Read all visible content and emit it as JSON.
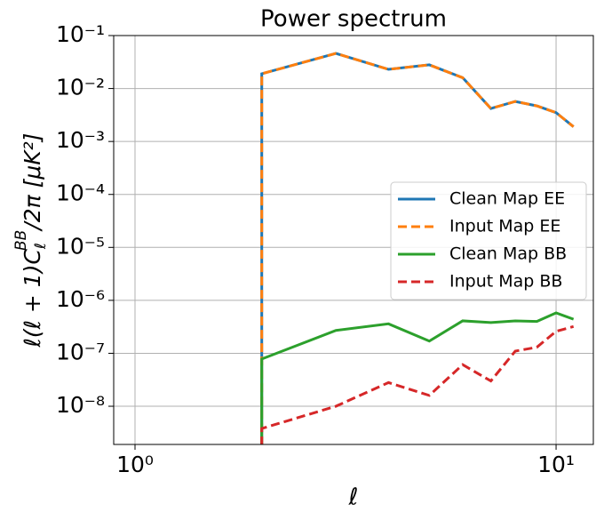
{
  "chart_data": {
    "type": "line",
    "title": "Power spectrum",
    "xlabel": "ℓ",
    "ylabel": [
      "ℓ(ℓ + 1)C",
      "ℓ",
      "BB",
      "/2π [μK²]"
    ],
    "x": [
      2,
      2,
      3,
      4,
      5,
      6,
      7,
      8,
      9,
      10,
      11
    ],
    "xscale": "log",
    "yscale": "log",
    "xlim": [
      0.89,
      12.26
    ],
    "ylim": [
      1.9e-09,
      0.1
    ],
    "xticks": [
      {
        "value": 1,
        "label": "10⁰"
      },
      {
        "value": 10,
        "label": "10¹"
      }
    ],
    "yticks": [
      {
        "value": 1e-08,
        "label": "10⁻⁸"
      },
      {
        "value": 1e-07,
        "label": "10⁻⁷"
      },
      {
        "value": 1e-06,
        "label": "10⁻⁶"
      },
      {
        "value": 1e-05,
        "label": "10⁻⁵"
      },
      {
        "value": 0.0001,
        "label": "10⁻⁴"
      },
      {
        "value": 0.001,
        "label": "10⁻³"
      },
      {
        "value": 0.01,
        "label": "10⁻²"
      },
      {
        "value": 0.1,
        "label": "10⁻¹"
      }
    ],
    "grid": true,
    "legend": "center right",
    "series": [
      {
        "name": "Clean Map EE",
        "color": "#1f77b4",
        "dash": false,
        "values": [
          1e-10,
          0.019,
          0.046,
          0.023,
          0.028,
          0.016,
          0.0042,
          0.0057,
          0.0047,
          0.0035,
          0.0019
        ]
      },
      {
        "name": "Input Map EE",
        "color": "#ff7f0e",
        "dash": true,
        "values": [
          1e-10,
          0.019,
          0.046,
          0.023,
          0.028,
          0.016,
          0.0042,
          0.0057,
          0.0047,
          0.0035,
          0.0019
        ]
      },
      {
        "name": "Clean Map BB",
        "color": "#2ca02c",
        "dash": false,
        "values": [
          1e-10,
          7.8e-08,
          2.7e-07,
          3.6e-07,
          1.7e-07,
          4.1e-07,
          3.8e-07,
          4.1e-07,
          4e-07,
          5.8e-07,
          4.4e-07
        ]
      },
      {
        "name": "Input Map BB",
        "color": "#d62728",
        "dash": true,
        "values": [
          1e-10,
          3.8e-09,
          1e-08,
          2.8e-08,
          1.6e-08,
          6.1e-08,
          3e-08,
          1.1e-07,
          1.3e-07,
          2.6e-07,
          3.2e-07
        ]
      }
    ]
  }
}
